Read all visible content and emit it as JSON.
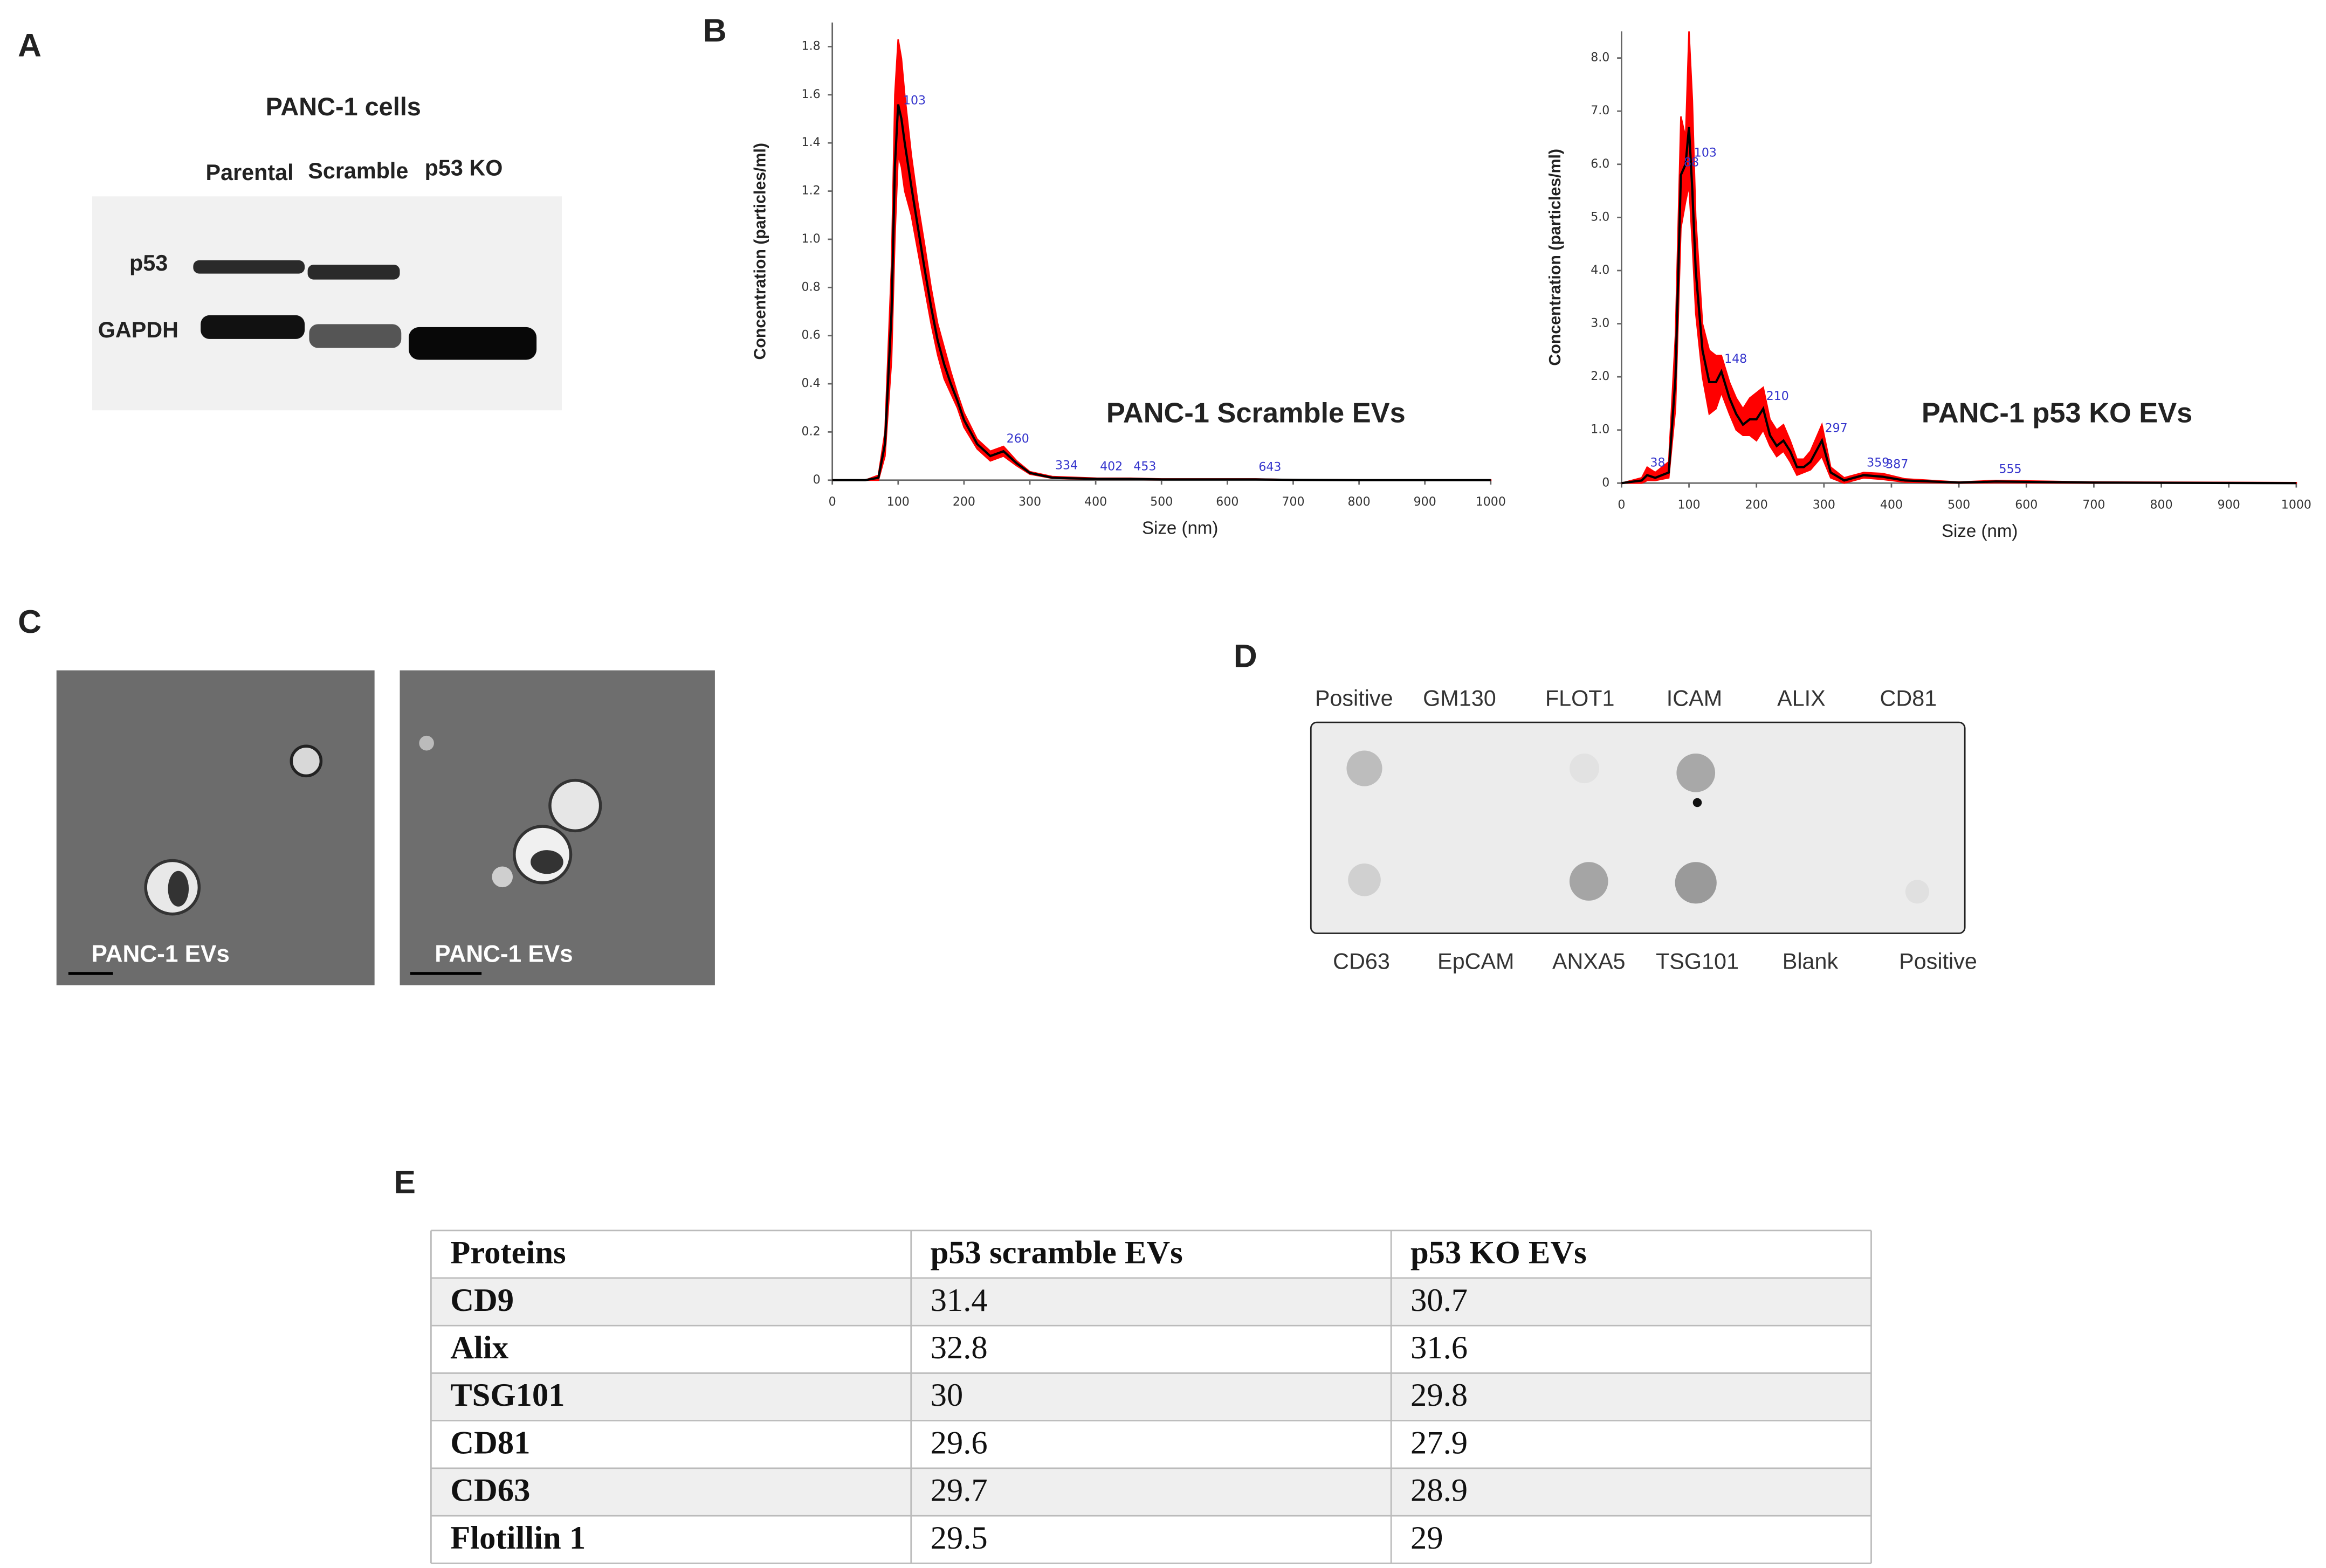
{
  "panel_labels": [
    "A",
    "B",
    "C",
    "D",
    "E"
  ],
  "western_blot": {
    "title": "PANC-1 cells",
    "lanes": [
      "Parental",
      "Scramble",
      "p53 KO"
    ],
    "rows": [
      "p53",
      "GAPDH"
    ]
  },
  "chart_data": [
    {
      "type": "line",
      "title": "PANC-1 Scramble EVs",
      "x_label": "Size (nm)",
      "y_label": "Concentration (particles/ml)",
      "x": [
        0,
        50,
        70,
        80,
        90,
        95,
        100,
        105,
        110,
        120,
        130,
        140,
        150,
        160,
        170,
        180,
        190,
        200,
        220,
        240,
        260,
        280,
        300,
        334,
        402,
        453,
        500,
        643,
        700,
        800,
        900,
        1000
      ],
      "series": [
        {
          "color": "#000000",
          "values": [
            0,
            0,
            0.01,
            0.15,
            0.7,
            1.3,
            1.56,
            1.5,
            1.4,
            1.22,
            1.05,
            0.88,
            0.72,
            0.58,
            0.48,
            0.4,
            0.33,
            0.25,
            0.15,
            0.1,
            0.12,
            0.07,
            0.03,
            0.01,
            0.005,
            0.005,
            0.003,
            0.003,
            0.001,
            0,
            0,
            0
          ]
        }
      ],
      "band": {
        "color": "#ff0000",
        "upper": [
          0,
          0,
          0.02,
          0.2,
          0.9,
          1.6,
          1.83,
          1.75,
          1.6,
          1.35,
          1.15,
          0.98,
          0.8,
          0.65,
          0.55,
          0.45,
          0.36,
          0.28,
          0.17,
          0.12,
          0.14,
          0.08,
          0.035,
          0.015,
          0.008,
          0.008,
          0.005,
          0.005,
          0.002,
          0.001,
          0.001,
          0.001
        ],
        "lower": [
          0,
          0,
          0,
          0.1,
          0.5,
          1.0,
          1.35,
          1.3,
          1.2,
          1.1,
          0.95,
          0.8,
          0.65,
          0.52,
          0.42,
          0.36,
          0.3,
          0.22,
          0.13,
          0.08,
          0.1,
          0.06,
          0.025,
          0.008,
          0.003,
          0.003,
          0.002,
          0.002,
          0,
          0,
          0,
          0
        ]
      },
      "peak_labels": [
        103,
        260,
        334,
        402,
        453,
        643
      ],
      "xlim": [
        0,
        1000
      ],
      "xticks": [
        0,
        100,
        200,
        300,
        400,
        500,
        600,
        700,
        800,
        900,
        1000
      ],
      "ylim": [
        0,
        1.9
      ],
      "yticks": [
        0,
        0.2,
        0.4,
        0.6,
        0.8,
        {
          "value": 1,
          "label": "1.0"
        },
        1.2,
        1.4,
        1.6,
        1.8
      ]
    },
    {
      "type": "line",
      "title": "PANC-1 p53 KO EVs",
      "x_label": "Size (nm)",
      "y_label": "Concentration (particles/ml)",
      "x": [
        0,
        30,
        38,
        50,
        70,
        80,
        88,
        95,
        100,
        105,
        110,
        120,
        130,
        140,
        148,
        160,
        170,
        180,
        190,
        200,
        210,
        220,
        230,
        240,
        250,
        260,
        270,
        280,
        297,
        310,
        330,
        359,
        387,
        420,
        500,
        555,
        700,
        1000
      ],
      "series": [
        {
          "color": "#000000",
          "values": [
            0,
            0.05,
            0.15,
            0.1,
            0.2,
            2.0,
            5.8,
            6.0,
            6.7,
            5.5,
            4.0,
            2.5,
            1.9,
            1.9,
            2.1,
            1.6,
            1.3,
            1.1,
            1.2,
            1.2,
            1.4,
            0.9,
            0.7,
            0.8,
            0.6,
            0.3,
            0.3,
            0.4,
            0.8,
            0.2,
            0.05,
            0.15,
            0.12,
            0.05,
            0.01,
            0.03,
            0.01,
            0
          ]
        }
      ],
      "band": {
        "color": "#ff0000",
        "upper": [
          0,
          0.1,
          0.3,
          0.2,
          0.4,
          2.8,
          6.9,
          6.5,
          8.5,
          7.2,
          5.0,
          3.0,
          2.5,
          2.4,
          2.4,
          1.9,
          1.6,
          1.4,
          1.6,
          1.7,
          1.8,
          1.2,
          1.0,
          1.1,
          0.8,
          0.45,
          0.45,
          0.6,
          1.1,
          0.3,
          0.1,
          0.2,
          0.18,
          0.08,
          0.02,
          0.05,
          0.02,
          0.01
        ],
        "lower": [
          0,
          0,
          0.05,
          0.05,
          0.1,
          1.4,
          4.8,
          5.3,
          5.6,
          4.5,
          3.2,
          2.0,
          1.3,
          1.4,
          1.7,
          1.3,
          1.0,
          0.9,
          0.9,
          0.8,
          1.0,
          0.7,
          0.5,
          0.6,
          0.4,
          0.15,
          0.2,
          0.25,
          0.5,
          0.1,
          0,
          0.1,
          0.07,
          0.02,
          0,
          0.01,
          0,
          0
        ]
      },
      "peak_labels": [
        38,
        88,
        103,
        148,
        210,
        297,
        359,
        387,
        555
      ],
      "xlim": [
        0,
        1000
      ],
      "xticks": [
        0,
        100,
        200,
        300,
        400,
        500,
        600,
        700,
        800,
        900,
        1000
      ],
      "ylim": [
        0,
        8.5
      ],
      "yticks": [
        0,
        {
          "value": 1,
          "label": "1.0"
        },
        {
          "value": 2,
          "label": "2.0"
        },
        {
          "value": 3,
          "label": "3.0"
        },
        {
          "value": 4,
          "label": "4.0"
        },
        {
          "value": 5,
          "label": "5.0"
        },
        {
          "value": 6,
          "label": "6.0"
        },
        {
          "value": 7,
          "label": "7.0"
        },
        {
          "value": 8,
          "label": "8.0"
        }
      ]
    }
  ],
  "tem": {
    "labels": [
      "PANC-1 EVs",
      "PANC-1 EVs"
    ]
  },
  "dot_blot": {
    "top": [
      "Positive",
      "GM130",
      "FLOT1",
      "ICAM",
      "ALIX",
      "CD81"
    ],
    "bottom": [
      "CD63",
      "EpCAM",
      "ANXA5",
      "TSG101",
      "Blank",
      "Positive"
    ]
  },
  "table": {
    "header": [
      "Proteins",
      "p53 scramble EVs",
      "p53 KO EVs"
    ],
    "rows": [
      [
        "CD9",
        31.4,
        30.7
      ],
      [
        "Alix",
        32.8,
        31.6
      ],
      [
        "TSG101",
        30,
        29.8
      ],
      [
        "CD81",
        29.6,
        27.9
      ],
      [
        "CD63",
        29.7,
        28.9
      ],
      [
        "Flotillin 1",
        29.5,
        29
      ]
    ]
  }
}
